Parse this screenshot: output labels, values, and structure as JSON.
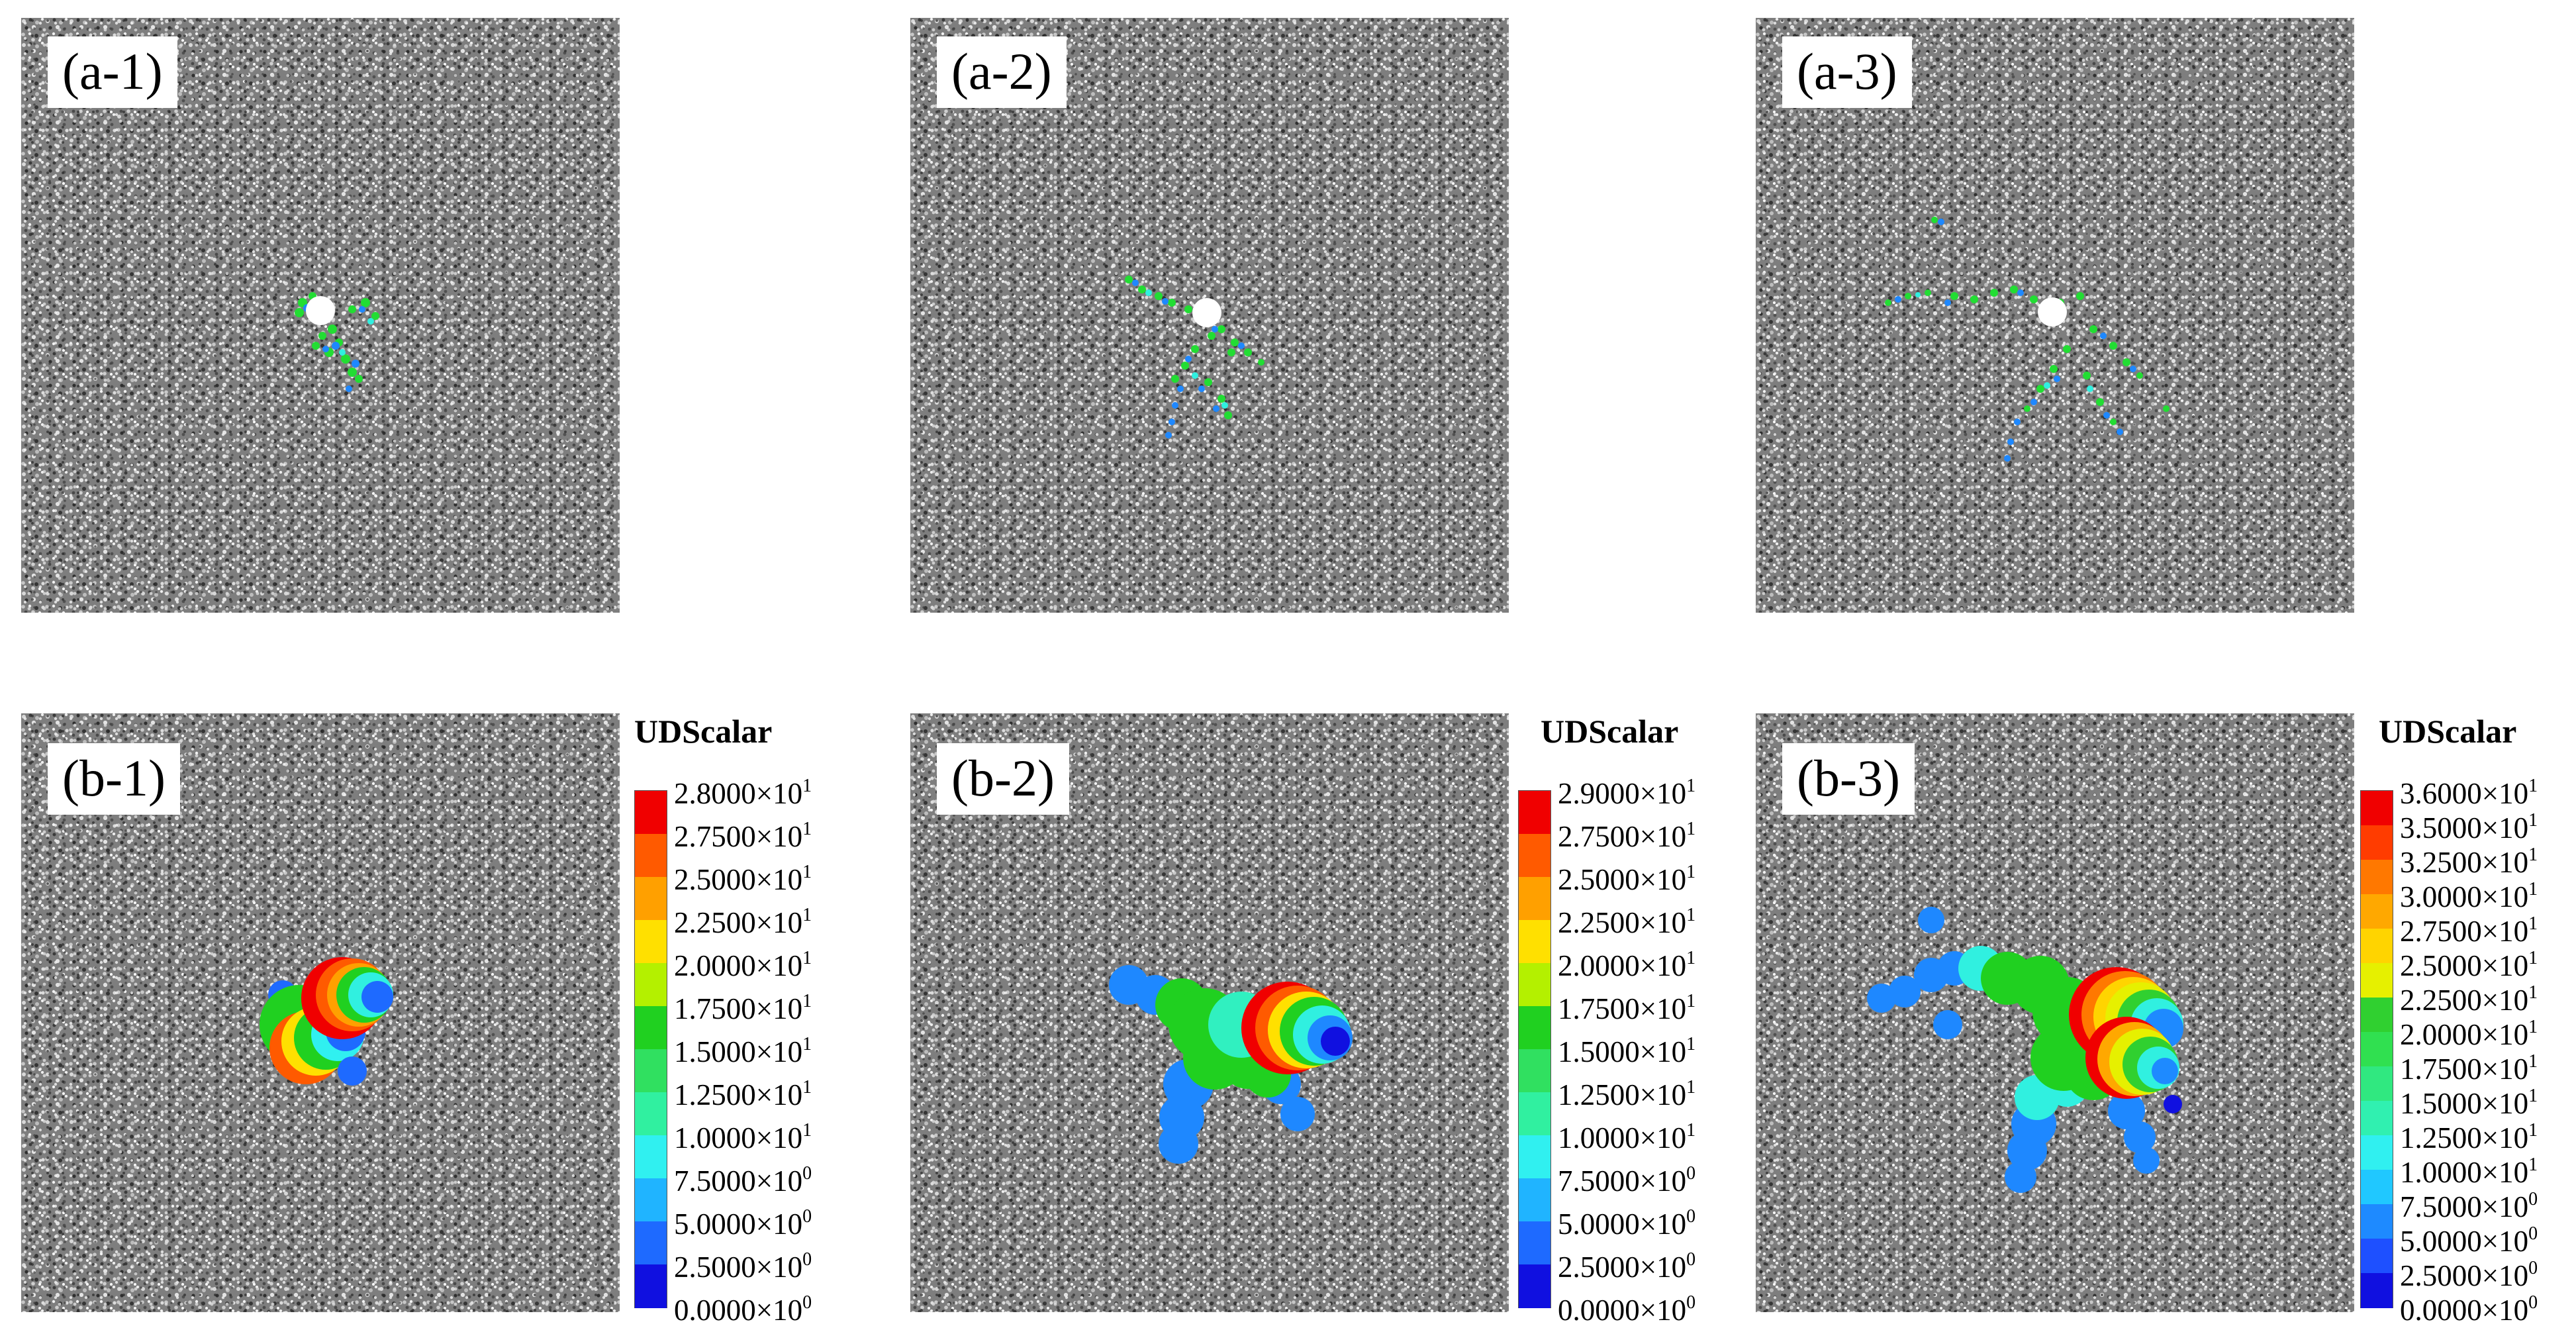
{
  "panels": {
    "a1": {
      "label": "(a-1)"
    },
    "a2": {
      "label": "(a-2)"
    },
    "a3": {
      "label": "(a-3)"
    },
    "b1": {
      "label": "(b-1)"
    },
    "b2": {
      "label": "(b-2)"
    },
    "b3": {
      "label": "(b-3)"
    }
  },
  "legends": [
    {
      "title": "UDScalar",
      "ticks": [
        "2.8000×10",
        "2.7500×10",
        "2.5000×10",
        "2.2500×10",
        "2.0000×10",
        "1.7500×10",
        "1.5000×10",
        "1.2500×10",
        "1.0000×10",
        "7.5000×10",
        "5.0000×10",
        "2.5000×10",
        "0.0000×10"
      ],
      "exps": [
        "1",
        "1",
        "1",
        "1",
        "1",
        "1",
        "1",
        "1",
        "1",
        "0",
        "0",
        "0",
        "0"
      ]
    },
    {
      "title": "UDScalar",
      "ticks": [
        "2.9000×10",
        "2.7500×10",
        "2.5000×10",
        "2.2500×10",
        "2.0000×10",
        "1.7500×10",
        "1.5000×10",
        "1.2500×10",
        "1.0000×10",
        "7.5000×10",
        "5.0000×10",
        "2.5000×10",
        "0.0000×10"
      ],
      "exps": [
        "1",
        "1",
        "1",
        "1",
        "1",
        "1",
        "1",
        "1",
        "1",
        "0",
        "0",
        "0",
        "0"
      ]
    },
    {
      "title": "UDScalar",
      "ticks": [
        "3.6000×10",
        "3.5000×10",
        "3.2500×10",
        "3.0000×10",
        "2.7500×10",
        "2.5000×10",
        "2.2500×10",
        "2.0000×10",
        "1.7500×10",
        "1.5000×10",
        "1.2500×10",
        "1.0000×10",
        "7.5000×10",
        "5.0000×10",
        "2.5000×10",
        "0.0000×10"
      ],
      "exps": [
        "1",
        "1",
        "1",
        "1",
        "1",
        "1",
        "1",
        "1",
        "1",
        "1",
        "1",
        "1",
        "0",
        "0",
        "0",
        "0"
      ]
    }
  ],
  "colors": {
    "scale13": [
      "#f00000",
      "#ff5a00",
      "#ffa000",
      "#ffe000",
      "#b4f000",
      "#20d020",
      "#30e060",
      "#30f0a0",
      "#30f0f0",
      "#20b4ff",
      "#1e6aff",
      "#1010e0",
      "#0000c0"
    ],
    "scale16": [
      "#f00000",
      "#ff3c00",
      "#ff7800",
      "#ffa800",
      "#ffd400",
      "#e6f000",
      "#30d030",
      "#30e050",
      "#30e880",
      "#30f0b0",
      "#30f0f0",
      "#20c8ff",
      "#1e8aff",
      "#1e50ff",
      "#1010e0",
      "#0000c0"
    ]
  }
}
